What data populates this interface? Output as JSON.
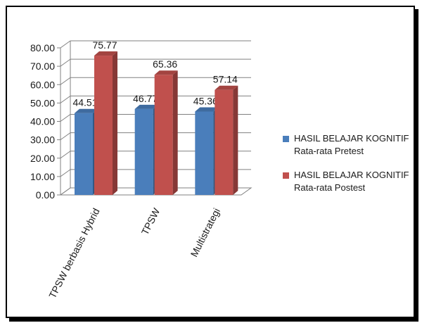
{
  "chart_data": {
    "type": "bar",
    "categories": [
      "TPSW berbasis Hybrid",
      "TPSW",
      "Multistrategi"
    ],
    "series": [
      {
        "name": "HASIL BELAJAR KOGNITIF Rata-rata Pretest",
        "values": [
          44.51,
          46.77,
          45.36
        ],
        "labels": [
          "44.51",
          "46.77",
          "45.36"
        ],
        "color": "#4a7ebb"
      },
      {
        "name": "HASIL BELAJAR KOGNITIF Rata-rata Postest",
        "values": [
          75.77,
          65.36,
          57.14
        ],
        "labels": [
          "75.77",
          "65.36",
          "57.14"
        ],
        "color": "#c0504d"
      }
    ],
    "yticks": [
      "0.00",
      "10.00",
      "20.00",
      "30.00",
      "40.00",
      "50.00",
      "60.00",
      "70.00",
      "80.00"
    ],
    "ylim": [
      0,
      80
    ],
    "grid": true,
    "legend_position": "right",
    "title": "",
    "xlabel": "",
    "ylabel": ""
  },
  "legend": {
    "items": [
      {
        "line1": "HASIL BELAJAR KOGNITIF",
        "line2": "Rata-rata Pretest",
        "color": "#4a7ebb"
      },
      {
        "line1": "HASIL BELAJAR KOGNITIF",
        "line2": "Rata-rata Postest",
        "color": "#c0504d"
      }
    ]
  }
}
